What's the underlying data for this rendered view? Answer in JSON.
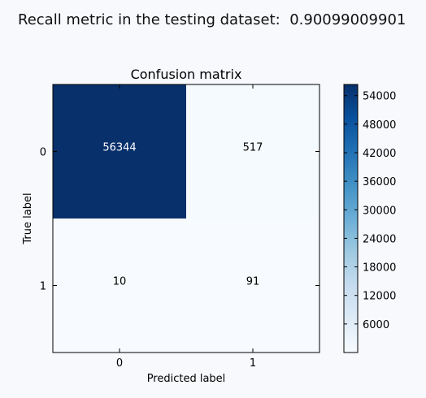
{
  "header": {
    "recall_label": "Recall metric in the testing dataset:",
    "recall_value": "0.90099009901"
  },
  "chart_data": {
    "type": "heatmap",
    "title": "Confusion matrix",
    "xlabel": "Predicted label",
    "ylabel": "True label",
    "x_categories": [
      "0",
      "1"
    ],
    "y_categories": [
      "0",
      "1"
    ],
    "matrix": [
      [
        56344,
        517
      ],
      [
        10,
        91
      ]
    ],
    "colormap": "Blues",
    "colorbar": {
      "ticks": [
        6000,
        12000,
        18000,
        24000,
        30000,
        36000,
        42000,
        48000,
        54000
      ],
      "range": [
        0,
        56344
      ]
    },
    "grid": false
  },
  "colors": {
    "cmap_low": "#f7fbff",
    "cmap_high": "#08306b",
    "text_on_dark": "#ffffff",
    "text_on_light": "#000000"
  }
}
